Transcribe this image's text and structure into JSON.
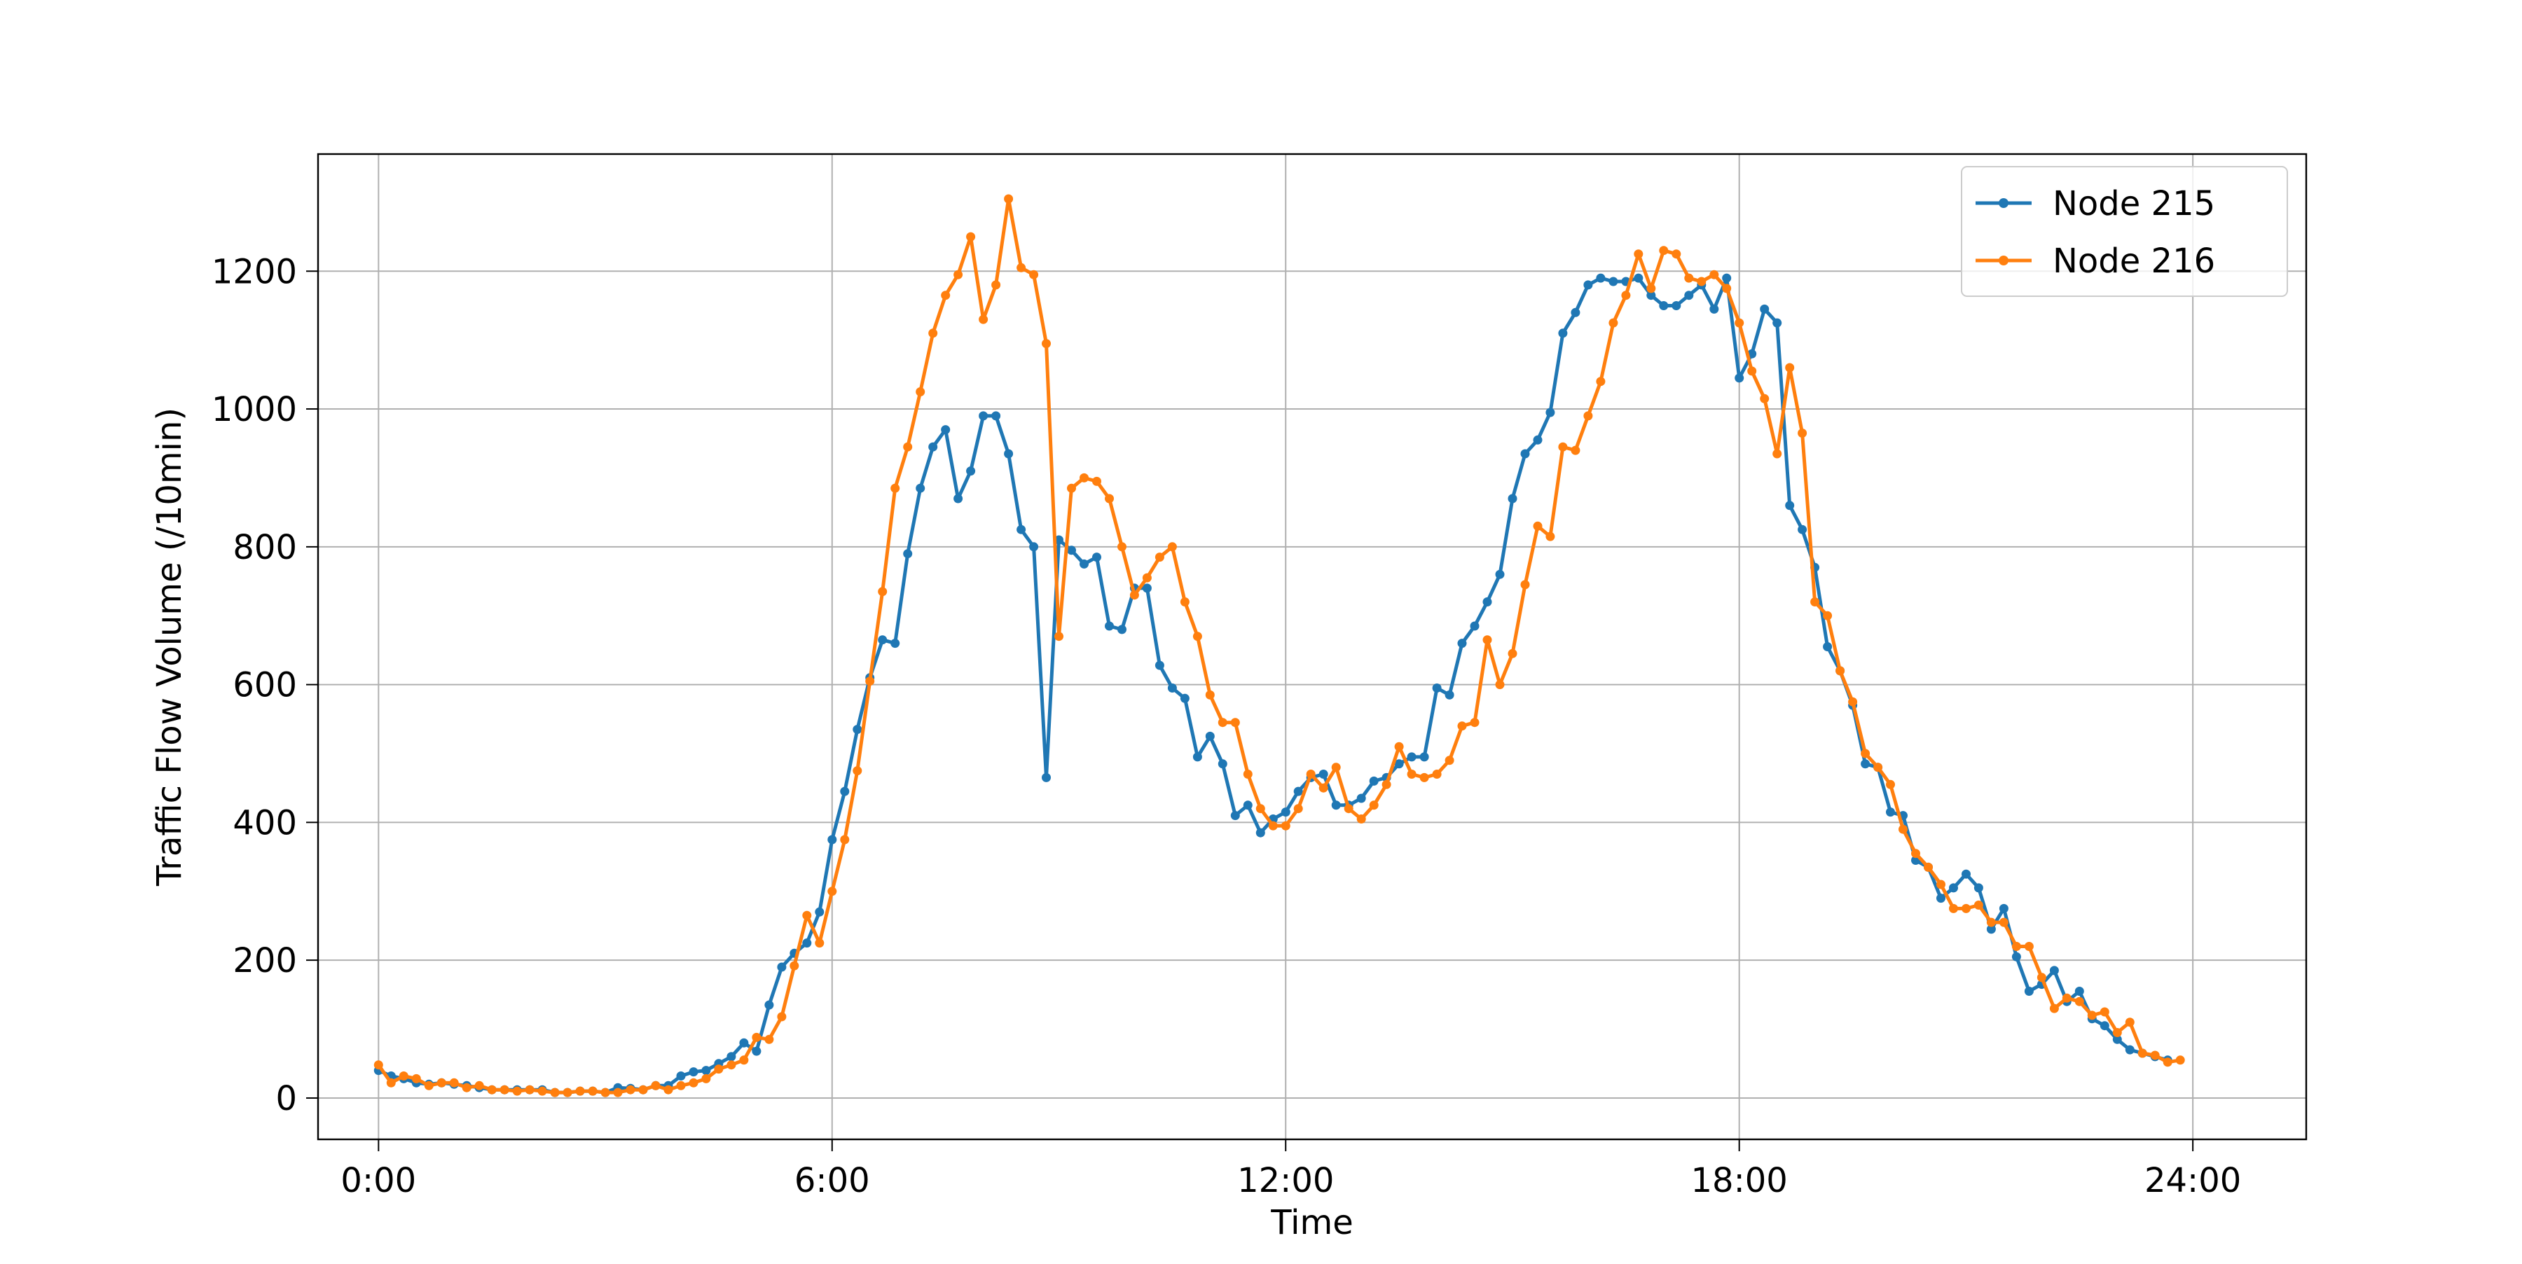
{
  "chart_data": {
    "type": "line",
    "title": "",
    "xlabel": "Time",
    "ylabel": "Traffic Flow Volume (/10min)",
    "xlim": [
      -0.8,
      25.5
    ],
    "ylim": [
      -60,
      1370
    ],
    "grid": true,
    "legend_position": "top-right",
    "x_ticks": [
      {
        "value": 0,
        "label": "0:00"
      },
      {
        "value": 6,
        "label": "6:00"
      },
      {
        "value": 12,
        "label": "12:00"
      },
      {
        "value": 18,
        "label": "18:00"
      },
      {
        "value": 24,
        "label": "24:00"
      }
    ],
    "y_ticks": [
      {
        "value": 0,
        "label": "0"
      },
      {
        "value": 200,
        "label": "200"
      },
      {
        "value": 400,
        "label": "400"
      },
      {
        "value": 600,
        "label": "600"
      },
      {
        "value": 800,
        "label": "800"
      },
      {
        "value": 1000,
        "label": "1000"
      },
      {
        "value": 1200,
        "label": "1200"
      }
    ],
    "x_step_hours": 0.16667,
    "series": [
      {
        "name": "Node 215",
        "color": "#1f77b4",
        "values": [
          40,
          32,
          28,
          22,
          20,
          22,
          20,
          18,
          15,
          12,
          12,
          12,
          12,
          12,
          8,
          8,
          10,
          10,
          8,
          15,
          14,
          12,
          18,
          18,
          32,
          38,
          40,
          50,
          60,
          80,
          68,
          135,
          190,
          210,
          225,
          270,
          375,
          445,
          535,
          610,
          665,
          660,
          790,
          885,
          945,
          970,
          870,
          910,
          990,
          990,
          935,
          825,
          800,
          465,
          810,
          795,
          775,
          785,
          685,
          680,
          740,
          740,
          628,
          595,
          580,
          495,
          525,
          485,
          410,
          425,
          385,
          405,
          415,
          445,
          465,
          470,
          425,
          425,
          435,
          460,
          465,
          485,
          495,
          495,
          595,
          585,
          660,
          685,
          720,
          760,
          870,
          935,
          955,
          995,
          1110,
          1140,
          1180,
          1190,
          1185,
          1185,
          1190,
          1165,
          1150,
          1150,
          1165,
          1180,
          1145,
          1190,
          1045,
          1080,
          1145,
          1125,
          860,
          825,
          770,
          655,
          620,
          570,
          485,
          480,
          415,
          410,
          345,
          335,
          290,
          305,
          325,
          305,
          245,
          275,
          205,
          155,
          165,
          185,
          140,
          155,
          115,
          105,
          85,
          70,
          65,
          60,
          55
        ]
      },
      {
        "name": "Node 216",
        "color": "#ff7f0e",
        "values": [
          48,
          22,
          32,
          28,
          18,
          22,
          22,
          15,
          18,
          12,
          12,
          10,
          12,
          10,
          8,
          8,
          10,
          10,
          8,
          8,
          12,
          12,
          18,
          12,
          18,
          22,
          28,
          42,
          48,
          55,
          88,
          85,
          118,
          192,
          265,
          225,
          300,
          375,
          475,
          605,
          735,
          885,
          945,
          1025,
          1110,
          1165,
          1195,
          1250,
          1130,
          1180,
          1305,
          1205,
          1195,
          1095,
          670,
          885,
          900,
          895,
          870,
          800,
          730,
          755,
          785,
          800,
          720,
          670,
          585,
          545,
          545,
          470,
          420,
          395,
          395,
          420,
          470,
          450,
          480,
          420,
          405,
          425,
          455,
          510,
          470,
          465,
          470,
          490,
          540,
          545,
          665,
          600,
          645,
          745,
          830,
          815,
          945,
          940,
          990,
          1040,
          1125,
          1165,
          1225,
          1175,
          1230,
          1225,
          1190,
          1185,
          1195,
          1175,
          1125,
          1055,
          1015,
          935,
          1060,
          965,
          720,
          700,
          620,
          575,
          500,
          480,
          455,
          390,
          355,
          335,
          310,
          275,
          275,
          280,
          255,
          255,
          220,
          220,
          175,
          130,
          145,
          140,
          120,
          125,
          95,
          110,
          65,
          62,
          52,
          55
        ]
      }
    ]
  }
}
